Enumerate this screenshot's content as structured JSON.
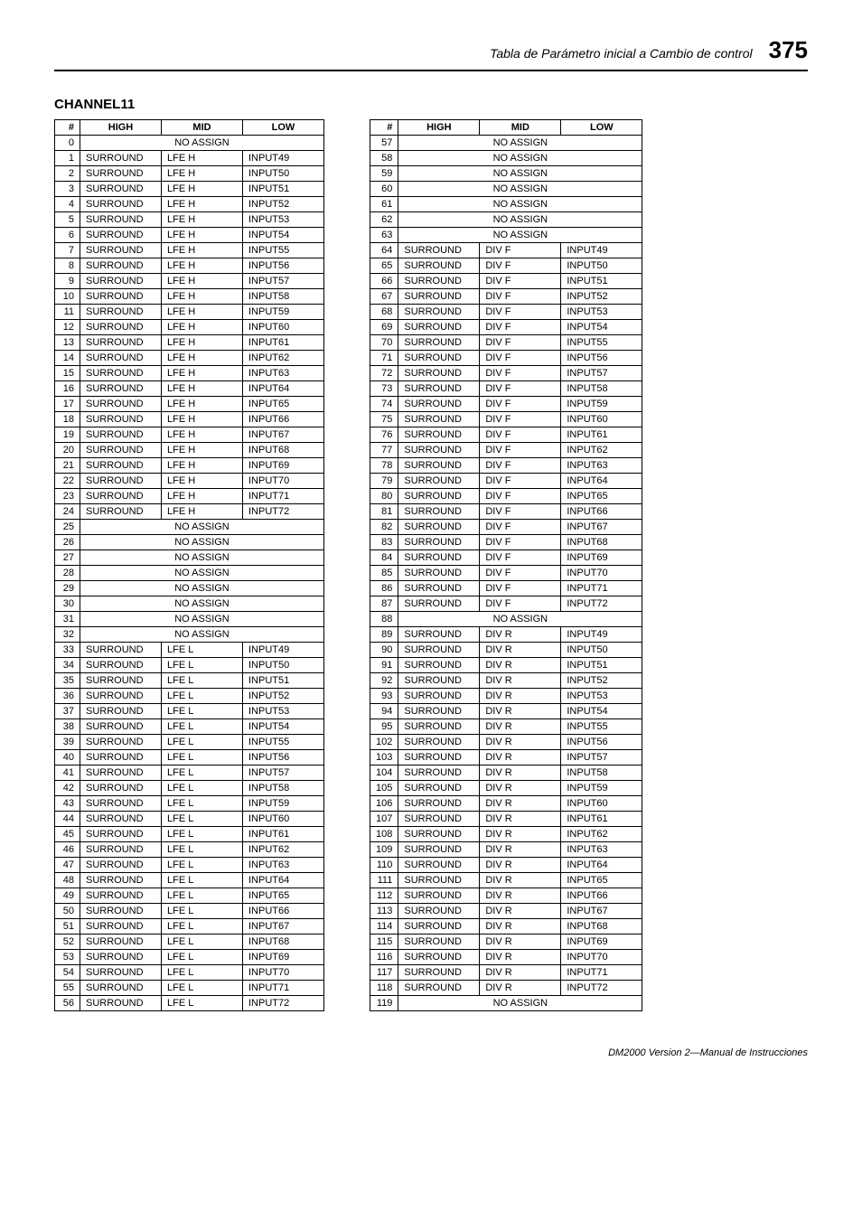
{
  "header": {
    "text": "Tabla de Parámetro inicial a Cambio de control",
    "page": "375"
  },
  "section_title": "CHANNEL11",
  "cols": {
    "num": "#",
    "high": "HIGH",
    "mid": "MID",
    "low": "LOW"
  },
  "no_assign": "NO ASSIGN",
  "left": [
    {
      "n": 0,
      "noassign": true
    },
    {
      "n": 1,
      "h": "SURROUND",
      "m": "LFE H",
      "l": "INPUT49"
    },
    {
      "n": 2,
      "h": "SURROUND",
      "m": "LFE H",
      "l": "INPUT50"
    },
    {
      "n": 3,
      "h": "SURROUND",
      "m": "LFE H",
      "l": "INPUT51"
    },
    {
      "n": 4,
      "h": "SURROUND",
      "m": "LFE H",
      "l": "INPUT52"
    },
    {
      "n": 5,
      "h": "SURROUND",
      "m": "LFE H",
      "l": "INPUT53"
    },
    {
      "n": 6,
      "h": "SURROUND",
      "m": "LFE H",
      "l": "INPUT54"
    },
    {
      "n": 7,
      "h": "SURROUND",
      "m": "LFE H",
      "l": "INPUT55"
    },
    {
      "n": 8,
      "h": "SURROUND",
      "m": "LFE H",
      "l": "INPUT56"
    },
    {
      "n": 9,
      "h": "SURROUND",
      "m": "LFE H",
      "l": "INPUT57"
    },
    {
      "n": 10,
      "h": "SURROUND",
      "m": "LFE H",
      "l": "INPUT58"
    },
    {
      "n": 11,
      "h": "SURROUND",
      "m": "LFE H",
      "l": "INPUT59"
    },
    {
      "n": 12,
      "h": "SURROUND",
      "m": "LFE H",
      "l": "INPUT60"
    },
    {
      "n": 13,
      "h": "SURROUND",
      "m": "LFE H",
      "l": "INPUT61"
    },
    {
      "n": 14,
      "h": "SURROUND",
      "m": "LFE H",
      "l": "INPUT62"
    },
    {
      "n": 15,
      "h": "SURROUND",
      "m": "LFE H",
      "l": "INPUT63"
    },
    {
      "n": 16,
      "h": "SURROUND",
      "m": "LFE H",
      "l": "INPUT64"
    },
    {
      "n": 17,
      "h": "SURROUND",
      "m": "LFE H",
      "l": "INPUT65"
    },
    {
      "n": 18,
      "h": "SURROUND",
      "m": "LFE H",
      "l": "INPUT66"
    },
    {
      "n": 19,
      "h": "SURROUND",
      "m": "LFE H",
      "l": "INPUT67"
    },
    {
      "n": 20,
      "h": "SURROUND",
      "m": "LFE H",
      "l": "INPUT68"
    },
    {
      "n": 21,
      "h": "SURROUND",
      "m": "LFE H",
      "l": "INPUT69"
    },
    {
      "n": 22,
      "h": "SURROUND",
      "m": "LFE H",
      "l": "INPUT70"
    },
    {
      "n": 23,
      "h": "SURROUND",
      "m": "LFE H",
      "l": "INPUT71"
    },
    {
      "n": 24,
      "h": "SURROUND",
      "m": "LFE H",
      "l": "INPUT72"
    },
    {
      "n": 25,
      "noassign": true
    },
    {
      "n": 26,
      "noassign": true
    },
    {
      "n": 27,
      "noassign": true
    },
    {
      "n": 28,
      "noassign": true
    },
    {
      "n": 29,
      "noassign": true
    },
    {
      "n": 30,
      "noassign": true
    },
    {
      "n": 31,
      "noassign": true
    },
    {
      "n": 32,
      "noassign": true
    },
    {
      "n": 33,
      "h": "SURROUND",
      "m": "LFE L",
      "l": "INPUT49"
    },
    {
      "n": 34,
      "h": "SURROUND",
      "m": "LFE L",
      "l": "INPUT50"
    },
    {
      "n": 35,
      "h": "SURROUND",
      "m": "LFE L",
      "l": "INPUT51"
    },
    {
      "n": 36,
      "h": "SURROUND",
      "m": "LFE L",
      "l": "INPUT52"
    },
    {
      "n": 37,
      "h": "SURROUND",
      "m": "LFE L",
      "l": "INPUT53"
    },
    {
      "n": 38,
      "h": "SURROUND",
      "m": "LFE L",
      "l": "INPUT54"
    },
    {
      "n": 39,
      "h": "SURROUND",
      "m": "LFE L",
      "l": "INPUT55"
    },
    {
      "n": 40,
      "h": "SURROUND",
      "m": "LFE L",
      "l": "INPUT56"
    },
    {
      "n": 41,
      "h": "SURROUND",
      "m": "LFE L",
      "l": "INPUT57"
    },
    {
      "n": 42,
      "h": "SURROUND",
      "m": "LFE L",
      "l": "INPUT58"
    },
    {
      "n": 43,
      "h": "SURROUND",
      "m": "LFE L",
      "l": "INPUT59"
    },
    {
      "n": 44,
      "h": "SURROUND",
      "m": "LFE L",
      "l": "INPUT60"
    },
    {
      "n": 45,
      "h": "SURROUND",
      "m": "LFE L",
      "l": "INPUT61"
    },
    {
      "n": 46,
      "h": "SURROUND",
      "m": "LFE L",
      "l": "INPUT62"
    },
    {
      "n": 47,
      "h": "SURROUND",
      "m": "LFE L",
      "l": "INPUT63"
    },
    {
      "n": 48,
      "h": "SURROUND",
      "m": "LFE L",
      "l": "INPUT64"
    },
    {
      "n": 49,
      "h": "SURROUND",
      "m": "LFE L",
      "l": "INPUT65"
    },
    {
      "n": 50,
      "h": "SURROUND",
      "m": "LFE L",
      "l": "INPUT66"
    },
    {
      "n": 51,
      "h": "SURROUND",
      "m": "LFE L",
      "l": "INPUT67"
    },
    {
      "n": 52,
      "h": "SURROUND",
      "m": "LFE L",
      "l": "INPUT68"
    },
    {
      "n": 53,
      "h": "SURROUND",
      "m": "LFE L",
      "l": "INPUT69"
    },
    {
      "n": 54,
      "h": "SURROUND",
      "m": "LFE L",
      "l": "INPUT70"
    },
    {
      "n": 55,
      "h": "SURROUND",
      "m": "LFE L",
      "l": "INPUT71"
    },
    {
      "n": 56,
      "h": "SURROUND",
      "m": "LFE L",
      "l": "INPUT72"
    }
  ],
  "right": [
    {
      "n": 57,
      "noassign": true
    },
    {
      "n": 58,
      "noassign": true
    },
    {
      "n": 59,
      "noassign": true
    },
    {
      "n": 60,
      "noassign": true
    },
    {
      "n": 61,
      "noassign": true
    },
    {
      "n": 62,
      "noassign": true
    },
    {
      "n": 63,
      "noassign": true
    },
    {
      "n": 64,
      "h": "SURROUND",
      "m": "DIV F",
      "l": "INPUT49"
    },
    {
      "n": 65,
      "h": "SURROUND",
      "m": "DIV F",
      "l": "INPUT50"
    },
    {
      "n": 66,
      "h": "SURROUND",
      "m": "DIV F",
      "l": "INPUT51"
    },
    {
      "n": 67,
      "h": "SURROUND",
      "m": "DIV F",
      "l": "INPUT52"
    },
    {
      "n": 68,
      "h": "SURROUND",
      "m": "DIV F",
      "l": "INPUT53"
    },
    {
      "n": 69,
      "h": "SURROUND",
      "m": "DIV F",
      "l": "INPUT54"
    },
    {
      "n": 70,
      "h": "SURROUND",
      "m": "DIV F",
      "l": "INPUT55"
    },
    {
      "n": 71,
      "h": "SURROUND",
      "m": "DIV F",
      "l": "INPUT56"
    },
    {
      "n": 72,
      "h": "SURROUND",
      "m": "DIV F",
      "l": "INPUT57"
    },
    {
      "n": 73,
      "h": "SURROUND",
      "m": "DIV F",
      "l": "INPUT58"
    },
    {
      "n": 74,
      "h": "SURROUND",
      "m": "DIV F",
      "l": "INPUT59"
    },
    {
      "n": 75,
      "h": "SURROUND",
      "m": "DIV F",
      "l": "INPUT60"
    },
    {
      "n": 76,
      "h": "SURROUND",
      "m": "DIV F",
      "l": "INPUT61"
    },
    {
      "n": 77,
      "h": "SURROUND",
      "m": "DIV F",
      "l": "INPUT62"
    },
    {
      "n": 78,
      "h": "SURROUND",
      "m": "DIV F",
      "l": "INPUT63"
    },
    {
      "n": 79,
      "h": "SURROUND",
      "m": "DIV F",
      "l": "INPUT64"
    },
    {
      "n": 80,
      "h": "SURROUND",
      "m": "DIV F",
      "l": "INPUT65"
    },
    {
      "n": 81,
      "h": "SURROUND",
      "m": "DIV F",
      "l": "INPUT66"
    },
    {
      "n": 82,
      "h": "SURROUND",
      "m": "DIV F",
      "l": "INPUT67"
    },
    {
      "n": 83,
      "h": "SURROUND",
      "m": "DIV F",
      "l": "INPUT68"
    },
    {
      "n": 84,
      "h": "SURROUND",
      "m": "DIV F",
      "l": "INPUT69"
    },
    {
      "n": 85,
      "h": "SURROUND",
      "m": "DIV F",
      "l": "INPUT70"
    },
    {
      "n": 86,
      "h": "SURROUND",
      "m": "DIV F",
      "l": "INPUT71"
    },
    {
      "n": 87,
      "h": "SURROUND",
      "m": "DIV F",
      "l": "INPUT72"
    },
    {
      "n": 88,
      "noassign": true
    },
    {
      "n": 89,
      "h": "SURROUND",
      "m": "DIV R",
      "l": "INPUT49"
    },
    {
      "n": 90,
      "h": "SURROUND",
      "m": "DIV R",
      "l": "INPUT50"
    },
    {
      "n": 91,
      "h": "SURROUND",
      "m": "DIV R",
      "l": "INPUT51"
    },
    {
      "n": 92,
      "h": "SURROUND",
      "m": "DIV R",
      "l": "INPUT52"
    },
    {
      "n": 93,
      "h": "SURROUND",
      "m": "DIV R",
      "l": "INPUT53"
    },
    {
      "n": 94,
      "h": "SURROUND",
      "m": "DIV R",
      "l": "INPUT54"
    },
    {
      "n": 95,
      "h": "SURROUND",
      "m": "DIV R",
      "l": "INPUT55"
    },
    {
      "n": 102,
      "h": "SURROUND",
      "m": "DIV R",
      "l": "INPUT56"
    },
    {
      "n": 103,
      "h": "SURROUND",
      "m": "DIV R",
      "l": "INPUT57"
    },
    {
      "n": 104,
      "h": "SURROUND",
      "m": "DIV R",
      "l": "INPUT58"
    },
    {
      "n": 105,
      "h": "SURROUND",
      "m": "DIV R",
      "l": "INPUT59"
    },
    {
      "n": 106,
      "h": "SURROUND",
      "m": "DIV R",
      "l": "INPUT60"
    },
    {
      "n": 107,
      "h": "SURROUND",
      "m": "DIV R",
      "l": "INPUT61"
    },
    {
      "n": 108,
      "h": "SURROUND",
      "m": "DIV R",
      "l": "INPUT62"
    },
    {
      "n": 109,
      "h": "SURROUND",
      "m": "DIV R",
      "l": "INPUT63"
    },
    {
      "n": 110,
      "h": "SURROUND",
      "m": "DIV R",
      "l": "INPUT64"
    },
    {
      "n": 111,
      "h": "SURROUND",
      "m": "DIV R",
      "l": "INPUT65"
    },
    {
      "n": 112,
      "h": "SURROUND",
      "m": "DIV R",
      "l": "INPUT66"
    },
    {
      "n": 113,
      "h": "SURROUND",
      "m": "DIV R",
      "l": "INPUT67"
    },
    {
      "n": 114,
      "h": "SURROUND",
      "m": "DIV R",
      "l": "INPUT68"
    },
    {
      "n": 115,
      "h": "SURROUND",
      "m": "DIV R",
      "l": "INPUT69"
    },
    {
      "n": 116,
      "h": "SURROUND",
      "m": "DIV R",
      "l": "INPUT70"
    },
    {
      "n": 117,
      "h": "SURROUND",
      "m": "DIV R",
      "l": "INPUT71"
    },
    {
      "n": 118,
      "h": "SURROUND",
      "m": "DIV R",
      "l": "INPUT72"
    },
    {
      "n": 119,
      "noassign": true
    }
  ],
  "footer": "DM2000 Version 2—Manual de Instrucciones"
}
